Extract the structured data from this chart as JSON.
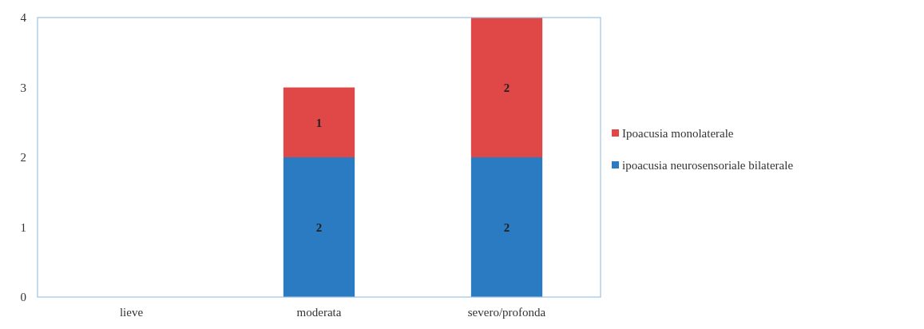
{
  "chart_data": {
    "type": "bar",
    "stacked": true,
    "categories": [
      "lieve",
      "moderata",
      "severo/profonda"
    ],
    "series": [
      {
        "name": "ipoacusia neurosensoriale bilaterale",
        "color": "#2a7bc1",
        "values": [
          null,
          2,
          2
        ]
      },
      {
        "name": "Ipoacusia monolaterale",
        "color": "#e04848",
        "values": [
          null,
          1,
          2
        ]
      }
    ],
    "ylim": [
      0,
      4
    ],
    "yticks": [
      0,
      1,
      2,
      3,
      4
    ],
    "data_labels": true,
    "legend": "right"
  }
}
